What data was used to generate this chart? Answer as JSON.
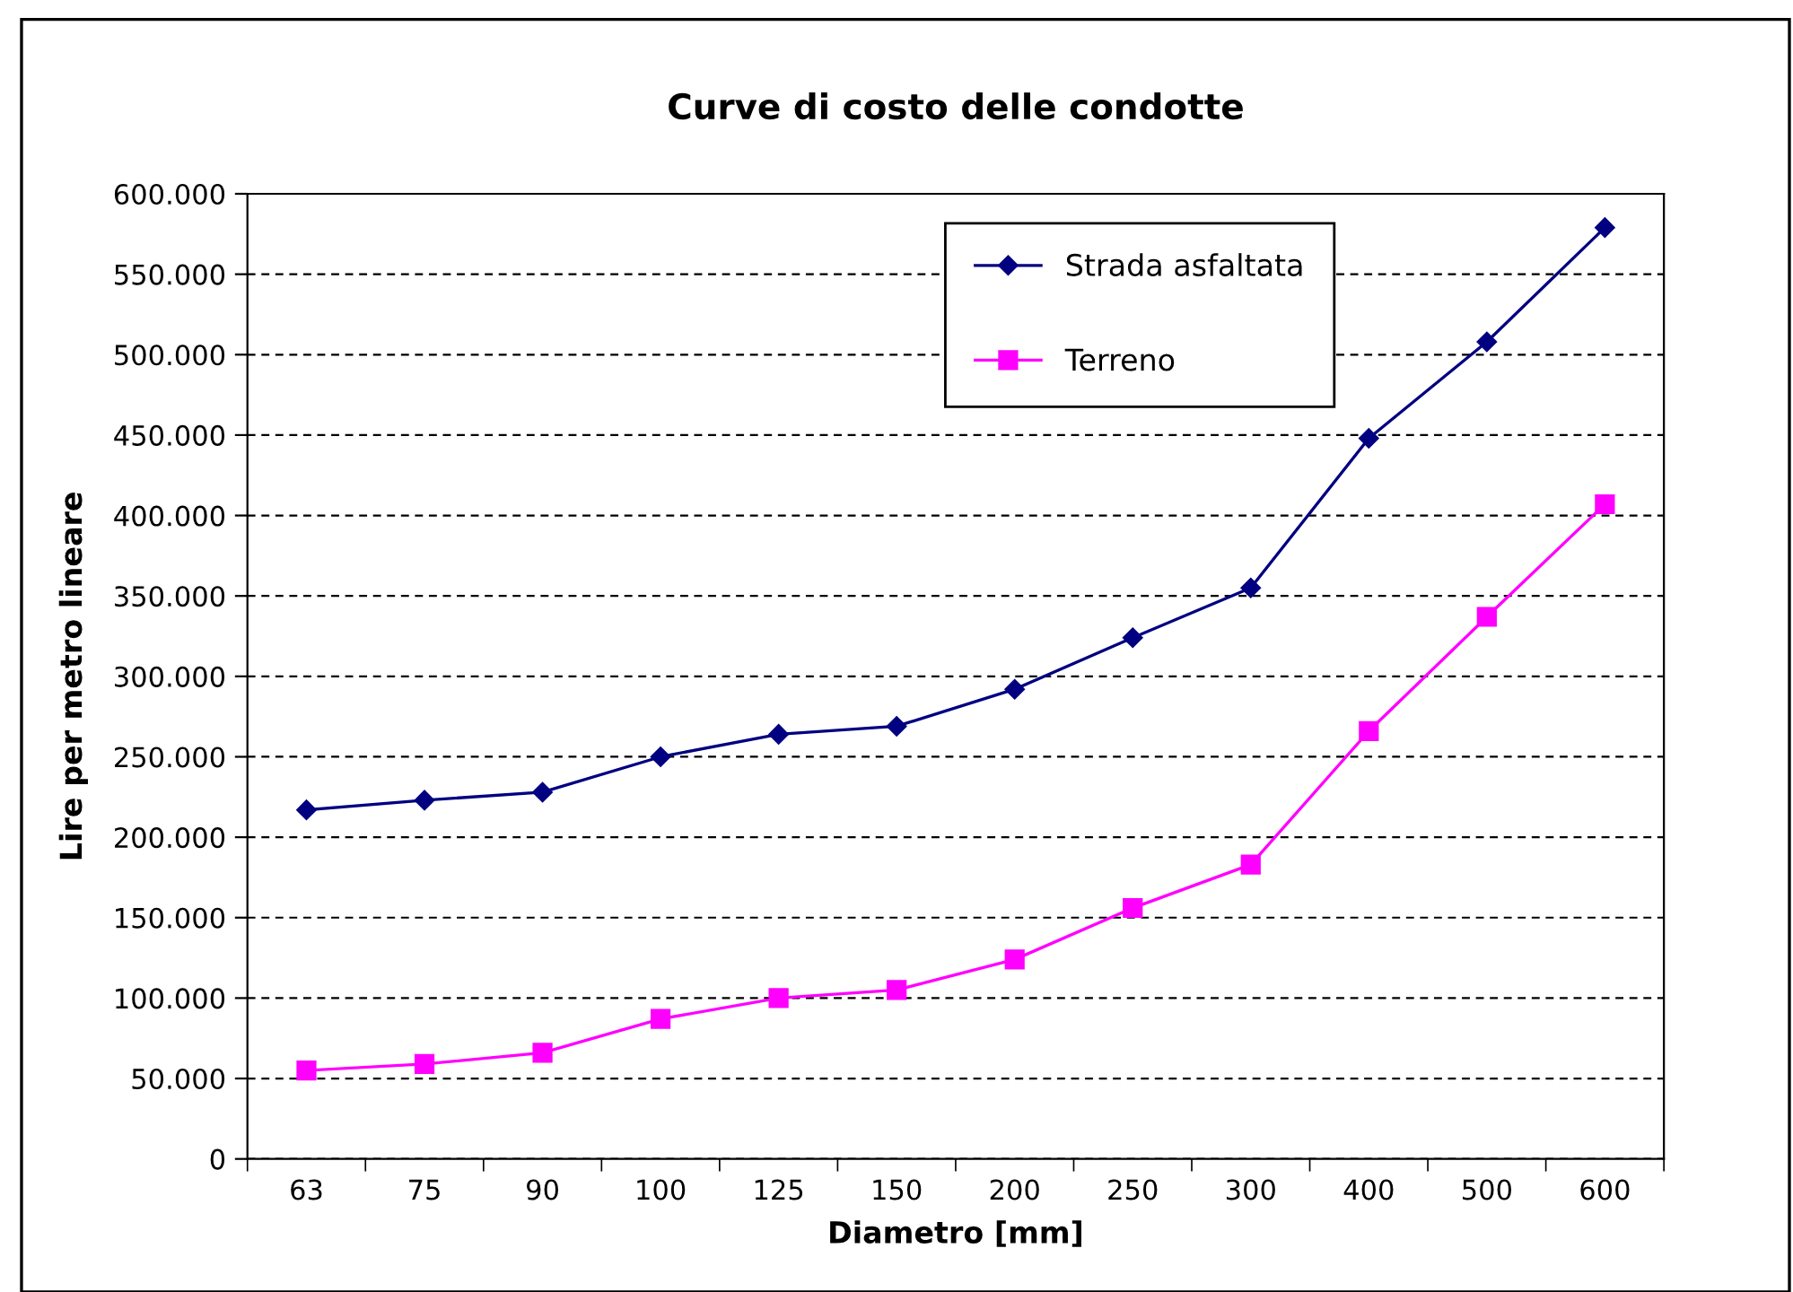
{
  "chart_data": {
    "type": "line",
    "title": "Curve di costo delle condotte",
    "xlabel": "Diametro [mm]",
    "ylabel": "Lire per metro lineare",
    "categories": [
      "63",
      "75",
      "90",
      "100",
      "125",
      "150",
      "200",
      "250",
      "300",
      "400",
      "500",
      "600"
    ],
    "series": [
      {
        "name": "Strada asfaltata",
        "color": "#000080",
        "marker": "diamond",
        "values": [
          217000,
          223000,
          228000,
          250000,
          264000,
          269000,
          292000,
          324000,
          355000,
          448000,
          508000,
          579000
        ]
      },
      {
        "name": "Terreno",
        "color": "#ff00ff",
        "marker": "square",
        "values": [
          55000,
          59000,
          66000,
          87000,
          100000,
          105000,
          124000,
          156000,
          183000,
          266000,
          337000,
          407000
        ]
      }
    ],
    "ylim": [
      0,
      600000
    ],
    "yticks": [
      0,
      {
        "value": 50000,
        "label": "50.000"
      },
      {
        "value": 100000,
        "label": "100.000"
      },
      {
        "value": 150000,
        "label": "150.000"
      },
      {
        "value": 200000,
        "label": "200.000"
      },
      {
        "value": 250000,
        "label": "250.000"
      },
      {
        "value": 300000,
        "label": "300.000"
      },
      {
        "value": 350000,
        "label": "350.000"
      },
      {
        "value": 400000,
        "label": "400.000"
      },
      {
        "value": 450000,
        "label": "450.000"
      },
      {
        "value": 500000,
        "label": "500.000"
      },
      {
        "value": 550000,
        "label": "550.000"
      },
      {
        "value": 600000,
        "label": "600.000"
      }
    ],
    "grid": "y",
    "legend": "top",
    "line_style": "solid"
  }
}
